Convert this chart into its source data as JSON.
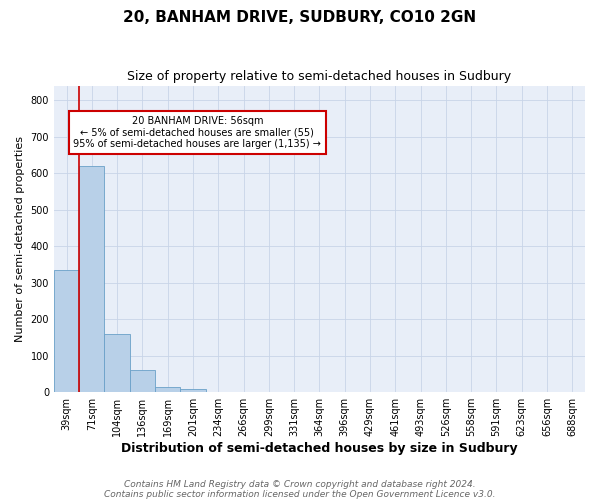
{
  "title": "20, BANHAM DRIVE, SUDBURY, CO10 2GN",
  "subtitle": "Size of property relative to semi-detached houses in Sudbury",
  "xlabel": "Distribution of semi-detached houses by size in Sudbury",
  "ylabel": "Number of semi-detached properties",
  "categories": [
    "39sqm",
    "71sqm",
    "104sqm",
    "136sqm",
    "169sqm",
    "201sqm",
    "234sqm",
    "266sqm",
    "299sqm",
    "331sqm",
    "364sqm",
    "396sqm",
    "429sqm",
    "461sqm",
    "493sqm",
    "526sqm",
    "558sqm",
    "591sqm",
    "623sqm",
    "656sqm",
    "688sqm"
  ],
  "values": [
    335,
    620,
    160,
    60,
    15,
    8,
    0,
    0,
    0,
    0,
    0,
    0,
    0,
    0,
    0,
    0,
    0,
    0,
    0,
    0,
    0
  ],
  "bar_color": "#b8d0e8",
  "bar_edge_color": "#6aa0c8",
  "ylim": [
    0,
    840
  ],
  "yticks": [
    0,
    100,
    200,
    300,
    400,
    500,
    600,
    700,
    800
  ],
  "property_sqm": 56,
  "property_label": "20 BANHAM DRIVE: 56sqm",
  "pct_smaller": 5,
  "n_smaller": 55,
  "pct_larger": 95,
  "n_larger": 1135,
  "red_line_color": "#cc0000",
  "annotation_box_color": "#cc0000",
  "grid_color": "#c8d4e8",
  "bg_color": "#e8eef8",
  "footer_line1": "Contains HM Land Registry data © Crown copyright and database right 2024.",
  "footer_line2": "Contains public sector information licensed under the Open Government Licence v3.0.",
  "title_fontsize": 11,
  "subtitle_fontsize": 9,
  "xlabel_fontsize": 9,
  "ylabel_fontsize": 8,
  "tick_fontsize": 7,
  "footer_fontsize": 6.5,
  "ann_fontsize": 7
}
